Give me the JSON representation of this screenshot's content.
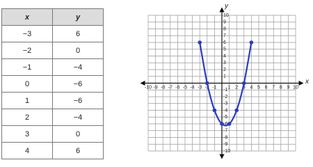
{
  "table": {
    "header": [
      "x",
      "y"
    ],
    "rows": [
      [
        "−3",
        "6"
      ],
      [
        "−2",
        "0"
      ],
      [
        "−1",
        "−4"
      ],
      [
        "0",
        "−6"
      ],
      [
        "1",
        "−6"
      ],
      [
        "2",
        "−4"
      ],
      [
        "3",
        "0"
      ],
      [
        "4",
        "6"
      ]
    ]
  },
  "chart_data": {
    "type": "line",
    "xlabel": "x",
    "ylabel": "y",
    "x": [
      -3,
      -2,
      -1,
      0,
      1,
      2,
      3,
      4
    ],
    "values": [
      6,
      0,
      -4,
      -6,
      -6,
      -4,
      0,
      6
    ],
    "color": "#2a3cc0",
    "markers": true,
    "xlim": [
      -10,
      10
    ],
    "ylim": [
      -10,
      10
    ],
    "xticks": [
      -10,
      -9,
      -8,
      -7,
      -6,
      -5,
      -4,
      -3,
      -2,
      -1,
      1,
      2,
      3,
      4,
      5,
      6,
      7,
      8,
      9,
      10
    ],
    "yticks": [
      -10,
      -9,
      -8,
      -7,
      -6,
      -5,
      -4,
      -3,
      -2,
      -1,
      1,
      2,
      3,
      4,
      5,
      6,
      7,
      8,
      9,
      10
    ],
    "grid": true
  }
}
